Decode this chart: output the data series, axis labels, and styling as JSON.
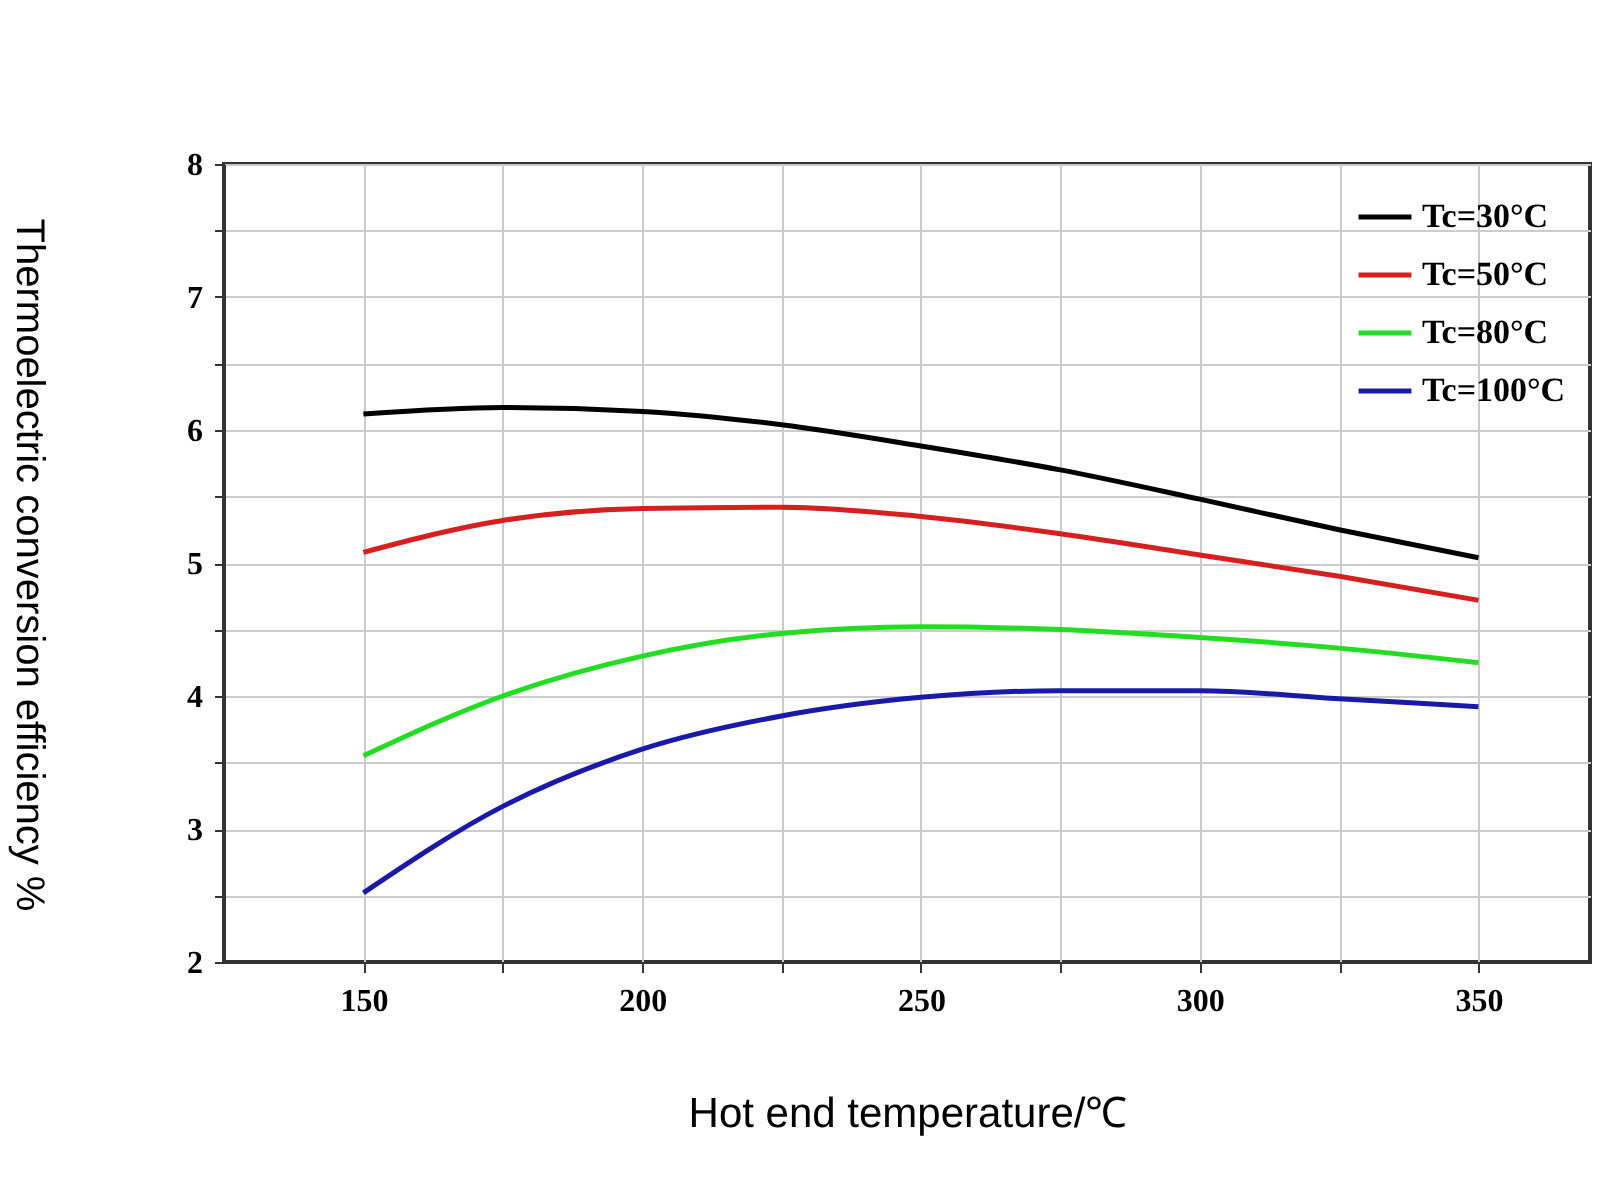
{
  "chart_data": {
    "type": "line",
    "xlabel": "Hot end temperature/℃",
    "ylabel": "Thermoelectric conversion efficiency %",
    "x": [
      150,
      175,
      200,
      225,
      250,
      275,
      300,
      325,
      350
    ],
    "series": [
      {
        "name": "Tc=30°C",
        "color": "#000000",
        "values": [
          6.12,
          6.17,
          6.14,
          6.04,
          5.88,
          5.7,
          5.48,
          5.25,
          5.04
        ]
      },
      {
        "name": "Tc=50°C",
        "color": "#d62020",
        "values": [
          5.08,
          5.32,
          5.41,
          5.42,
          5.35,
          5.22,
          5.06,
          4.9,
          4.72
        ]
      },
      {
        "name": "Tc=80°C",
        "color": "#22dd22",
        "values": [
          3.55,
          4.0,
          4.3,
          4.47,
          4.52,
          4.5,
          4.44,
          4.36,
          4.25
        ]
      },
      {
        "name": "Tc=100°C",
        "color": "#1a1aa8",
        "values": [
          2.52,
          3.17,
          3.6,
          3.85,
          3.99,
          4.04,
          4.04,
          3.98,
          3.92
        ]
      }
    ],
    "xlim": [
      125,
      370
    ],
    "xticks": [
      150,
      {
        "value": 175,
        "label": null
      },
      200,
      {
        "value": 225,
        "label": null
      },
      250,
      {
        "value": 275,
        "label": null
      },
      300,
      {
        "value": 325,
        "label": null
      },
      350
    ],
    "ylim": [
      2,
      8
    ],
    "yticks": [
      2,
      {
        "value": 2.5,
        "label": null
      },
      3,
      {
        "value": 3.5,
        "label": null
      },
      4,
      {
        "value": 4.5,
        "label": null
      },
      5,
      {
        "value": 5.5,
        "label": null
      },
      6,
      {
        "value": 6.5,
        "label": null
      },
      7,
      {
        "value": 7.5,
        "label": null
      },
      8
    ],
    "grid": true,
    "legend": "top right",
    "marker": "none",
    "line_style": "solid"
  }
}
